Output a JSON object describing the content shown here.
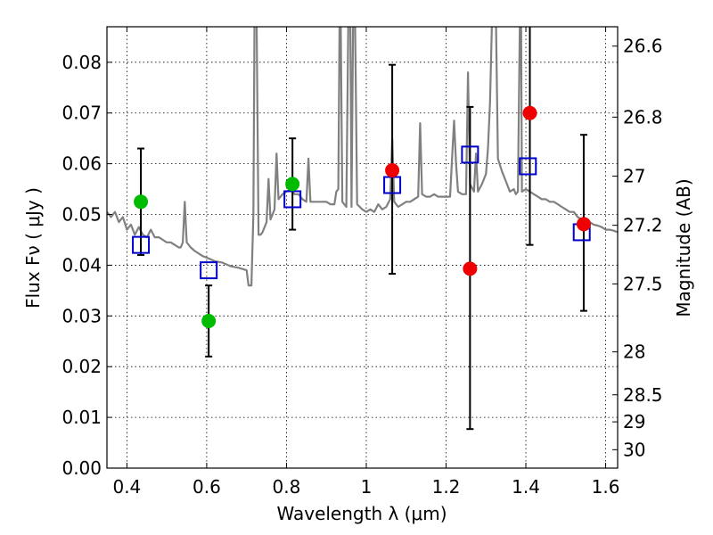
{
  "chart_data": {
    "type": "scatter",
    "title": "",
    "xlabel": "Wavelength  λ (μm)",
    "ylabel": "Flux  Fν  ( μJy )",
    "y2label": "Magnitude (AB)",
    "xlim": [
      0.35,
      1.63
    ],
    "ylim": [
      0.0,
      0.087
    ],
    "grid": true,
    "x_ticks": [
      0.4,
      0.6,
      0.8,
      1.0,
      1.2,
      1.4,
      1.6
    ],
    "x_tick_labels": [
      "0.4",
      "0.6",
      "0.8",
      "1",
      "1.2",
      "1.4",
      "1.6"
    ],
    "y_ticks": [
      0.0,
      0.01,
      0.02,
      0.03,
      0.04,
      0.05,
      0.06,
      0.07,
      0.08
    ],
    "y_tick_labels": [
      "0.00",
      "0.01",
      "0.02",
      "0.03",
      "0.04",
      "0.05",
      "0.06",
      "0.07",
      "0.08"
    ],
    "mag_ticks": [
      "26.6",
      "26.8",
      "27",
      "27.2",
      "27.5",
      "28",
      "28.5",
      "29",
      "30"
    ],
    "colors": {
      "spectrum": "#808080",
      "green": "#00bb00",
      "red": "#ee0000",
      "model": "#0000cc",
      "errorbar": "#000000"
    },
    "spectrum": [
      [
        0.35,
        0.0505
      ],
      [
        0.36,
        0.0495
      ],
      [
        0.37,
        0.0505
      ],
      [
        0.38,
        0.0485
      ],
      [
        0.39,
        0.0495
      ],
      [
        0.4,
        0.047
      ],
      [
        0.41,
        0.048
      ],
      [
        0.42,
        0.046
      ],
      [
        0.43,
        0.0475
      ],
      [
        0.44,
        0.046
      ],
      [
        0.45,
        0.0455
      ],
      [
        0.46,
        0.047
      ],
      [
        0.47,
        0.0455
      ],
      [
        0.48,
        0.0455
      ],
      [
        0.49,
        0.045
      ],
      [
        0.5,
        0.0445
      ],
      [
        0.51,
        0.0445
      ],
      [
        0.52,
        0.044
      ],
      [
        0.53,
        0.0435
      ],
      [
        0.535,
        0.0435
      ],
      [
        0.54,
        0.0445
      ],
      [
        0.545,
        0.0525
      ],
      [
        0.55,
        0.0445
      ],
      [
        0.56,
        0.0435
      ],
      [
        0.57,
        0.0428
      ],
      [
        0.58,
        0.0423
      ],
      [
        0.59,
        0.0418
      ],
      [
        0.6,
        0.0415
      ],
      [
        0.62,
        0.0408
      ],
      [
        0.64,
        0.0405
      ],
      [
        0.66,
        0.0398
      ],
      [
        0.68,
        0.0395
      ],
      [
        0.7,
        0.039
      ],
      [
        0.705,
        0.036
      ],
      [
        0.712,
        0.036
      ],
      [
        0.717,
        0.05
      ],
      [
        0.72,
        0.089
      ],
      [
        0.725,
        0.089
      ],
      [
        0.73,
        0.046
      ],
      [
        0.735,
        0.046
      ],
      [
        0.74,
        0.0465
      ],
      [
        0.75,
        0.0485
      ],
      [
        0.755,
        0.057
      ],
      [
        0.76,
        0.049
      ],
      [
        0.77,
        0.051
      ],
      [
        0.775,
        0.062
      ],
      [
        0.78,
        0.053
      ],
      [
        0.79,
        0.054
      ],
      [
        0.8,
        0.0545
      ],
      [
        0.81,
        0.055
      ],
      [
        0.82,
        0.054
      ],
      [
        0.83,
        0.054
      ],
      [
        0.84,
        0.053
      ],
      [
        0.85,
        0.0525
      ],
      [
        0.855,
        0.061
      ],
      [
        0.86,
        0.0525
      ],
      [
        0.87,
        0.0525
      ],
      [
        0.88,
        0.0525
      ],
      [
        0.89,
        0.0525
      ],
      [
        0.9,
        0.0525
      ],
      [
        0.91,
        0.052
      ],
      [
        0.92,
        0.052
      ],
      [
        0.925,
        0.0545
      ],
      [
        0.93,
        0.055
      ],
      [
        0.933,
        0.088
      ],
      [
        0.936,
        0.088
      ],
      [
        0.94,
        0.0525
      ],
      [
        0.95,
        0.0515
      ],
      [
        0.955,
        0.088
      ],
      [
        0.96,
        0.088
      ],
      [
        0.963,
        0.0515
      ],
      [
        0.967,
        0.088
      ],
      [
        0.972,
        0.088
      ],
      [
        0.977,
        0.052
      ],
      [
        0.99,
        0.051
      ],
      [
        1.0,
        0.0505
      ],
      [
        1.01,
        0.051
      ],
      [
        1.02,
        0.0505
      ],
      [
        1.03,
        0.052
      ],
      [
        1.04,
        0.051
      ],
      [
        1.05,
        0.0515
      ],
      [
        1.06,
        0.053
      ],
      [
        1.065,
        0.065
      ],
      [
        1.07,
        0.0525
      ],
      [
        1.08,
        0.0515
      ],
      [
        1.1,
        0.0525
      ],
      [
        1.11,
        0.0525
      ],
      [
        1.12,
        0.053
      ],
      [
        1.13,
        0.0535
      ],
      [
        1.135,
        0.068
      ],
      [
        1.14,
        0.054
      ],
      [
        1.15,
        0.0535
      ],
      [
        1.16,
        0.0535
      ],
      [
        1.17,
        0.054
      ],
      [
        1.18,
        0.0535
      ],
      [
        1.19,
        0.0535
      ],
      [
        1.2,
        0.0535
      ],
      [
        1.21,
        0.0535
      ],
      [
        1.215,
        0.061
      ],
      [
        1.22,
        0.0685
      ],
      [
        1.225,
        0.06
      ],
      [
        1.23,
        0.0545
      ],
      [
        1.24,
        0.054
      ],
      [
        1.25,
        0.054
      ],
      [
        1.255,
        0.078
      ],
      [
        1.26,
        0.056
      ],
      [
        1.27,
        0.0545
      ],
      [
        1.275,
        0.062
      ],
      [
        1.28,
        0.0545
      ],
      [
        1.29,
        0.056
      ],
      [
        1.3,
        0.058
      ],
      [
        1.305,
        0.063
      ],
      [
        1.31,
        0.072
      ],
      [
        1.315,
        0.088
      ],
      [
        1.325,
        0.088
      ],
      [
        1.33,
        0.061
      ],
      [
        1.34,
        0.0585
      ],
      [
        1.35,
        0.0565
      ],
      [
        1.36,
        0.0545
      ],
      [
        1.37,
        0.055
      ],
      [
        1.375,
        0.054
      ],
      [
        1.38,
        0.0545
      ],
      [
        1.385,
        0.088
      ],
      [
        1.388,
        0.088
      ],
      [
        1.39,
        0.0545
      ],
      [
        1.4,
        0.055
      ],
      [
        1.41,
        0.0545
      ],
      [
        1.42,
        0.054
      ],
      [
        1.43,
        0.0535
      ],
      [
        1.44,
        0.053
      ],
      [
        1.45,
        0.053
      ],
      [
        1.46,
        0.0525
      ],
      [
        1.47,
        0.0525
      ],
      [
        1.48,
        0.052
      ],
      [
        1.49,
        0.0515
      ],
      [
        1.5,
        0.051
      ],
      [
        1.51,
        0.0505
      ],
      [
        1.52,
        0.0505
      ],
      [
        1.53,
        0.0495
      ],
      [
        1.54,
        0.049
      ],
      [
        1.55,
        0.0488
      ],
      [
        1.56,
        0.0485
      ],
      [
        1.57,
        0.048
      ],
      [
        1.58,
        0.0478
      ],
      [
        1.59,
        0.0475
      ],
      [
        1.6,
        0.047
      ],
      [
        1.61,
        0.047
      ],
      [
        1.62,
        0.0468
      ],
      [
        1.63,
        0.0465
      ]
    ],
    "green_points": [
      {
        "x": 0.435,
        "y": 0.0525,
        "yerr_low": 0.042,
        "yerr_high": 0.063
      },
      {
        "x": 0.605,
        "y": 0.029,
        "yerr_low": 0.022,
        "yerr_high": 0.036
      },
      {
        "x": 0.815,
        "y": 0.056,
        "yerr_low": 0.047,
        "yerr_high": 0.065
      }
    ],
    "red_points": [
      {
        "x": 1.065,
        "y": 0.0587,
        "yerr_low": 0.0383,
        "yerr_high": 0.0795
      },
      {
        "x": 1.26,
        "y": 0.0393,
        "yerr_low": 0.0077,
        "yerr_high": 0.0712
      },
      {
        "x": 1.41,
        "y": 0.07,
        "yerr_low": 0.044,
        "yerr_high": 0.087
      },
      {
        "x": 1.545,
        "y": 0.0481,
        "yerr_low": 0.031,
        "yerr_high": 0.0657
      }
    ],
    "model_points": [
      {
        "x": 0.435,
        "y": 0.044
      },
      {
        "x": 0.605,
        "y": 0.039
      },
      {
        "x": 0.815,
        "y": 0.053
      },
      {
        "x": 1.065,
        "y": 0.0558
      },
      {
        "x": 1.26,
        "y": 0.0618
      },
      {
        "x": 1.405,
        "y": 0.0595
      },
      {
        "x": 1.54,
        "y": 0.0465
      }
    ]
  }
}
